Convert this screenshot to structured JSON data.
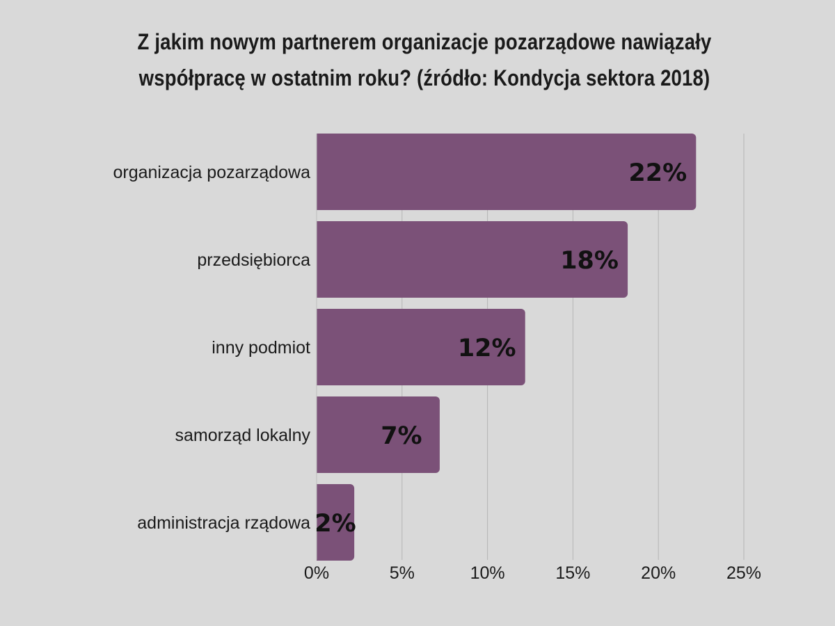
{
  "chart_data": {
    "type": "bar",
    "orientation": "horizontal",
    "title": "Z jakim nowym partnerem organizacje pozarządowe nawiązały współpracę w ostatnim roku? (źródło: Kondycja sektora 2018)",
    "categories": [
      "organizacja pozarządowa",
      "przedsiębiorca",
      "inny podmiot",
      "samorząd lokalny",
      "administracja rządowa"
    ],
    "values": [
      22,
      18,
      12,
      7,
      2
    ],
    "data_labels": [
      "22%",
      "18%",
      "12%",
      "7%",
      "2%"
    ],
    "xlim": [
      0,
      25
    ],
    "x_ticks": [
      0,
      5,
      10,
      15,
      20,
      25
    ],
    "x_tick_labels": [
      "0%",
      "5%",
      "10%",
      "15%",
      "20%",
      "25%"
    ],
    "xlabel": "",
    "ylabel": "",
    "grid": "vertical",
    "legend": "none",
    "colors": {
      "bar": "#7b5178",
      "background": "#d9d9d9",
      "grid": "#b5b5b5",
      "axis": "#bdbdbd",
      "text": "#1a1a1a"
    }
  }
}
